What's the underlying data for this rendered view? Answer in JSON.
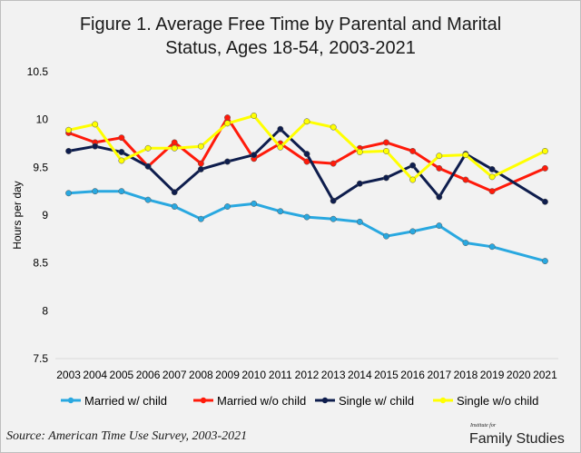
{
  "chart_data": {
    "type": "line",
    "title_line1": "Figure 1. Average Free Time by Parental and Marital",
    "title_line2": "Status, Ages 18-54, 2003-2021",
    "ylabel": "Hours per day",
    "xlabel": "",
    "ylim": [
      7.5,
      10.5
    ],
    "yticks": [
      7.5,
      8,
      8.5,
      9,
      9.5,
      10,
      10.5
    ],
    "ytick_labels": [
      "7.5",
      "8",
      "8.5",
      "9",
      "9.5",
      "10",
      "10.5"
    ],
    "grid": false,
    "legend_position": "bottom",
    "categories": [
      "2003",
      "2004",
      "2005",
      "2006",
      "2007",
      "2008",
      "2009",
      "2010",
      "2011",
      "2012",
      "2013",
      "2014",
      "2015",
      "2016",
      "2017",
      "2018",
      "2019",
      "2020",
      "2021"
    ],
    "series": [
      {
        "name": "Married w/ child",
        "color": "#29a8e0",
        "values": [
          9.23,
          9.25,
          9.25,
          9.16,
          9.09,
          8.96,
          9.09,
          9.12,
          9.04,
          8.98,
          8.96,
          8.93,
          8.78,
          8.83,
          8.89,
          8.71,
          8.67,
          null,
          8.52
        ]
      },
      {
        "name": "Married w/o child",
        "color": "#ff1a0a",
        "values": [
          9.86,
          9.76,
          9.81,
          9.51,
          9.76,
          9.54,
          10.02,
          9.59,
          9.75,
          9.56,
          9.54,
          9.7,
          9.76,
          9.67,
          9.49,
          9.37,
          9.25,
          null,
          9.49
        ]
      },
      {
        "name": "Single w/ child",
        "color": "#0e1d4d",
        "values": [
          9.67,
          9.72,
          9.66,
          9.51,
          9.24,
          9.48,
          9.56,
          9.63,
          9.9,
          9.64,
          9.15,
          9.33,
          9.39,
          9.52,
          9.19,
          9.64,
          9.48,
          null,
          9.14
        ]
      },
      {
        "name": "Single w/o child",
        "color": "#ffff00",
        "values": [
          9.89,
          9.95,
          9.57,
          9.7,
          9.7,
          9.72,
          9.96,
          10.04,
          9.71,
          9.98,
          9.92,
          9.66,
          9.67,
          9.37,
          9.62,
          9.63,
          9.4,
          null,
          9.67
        ]
      }
    ],
    "source": "Source: American Time Use Survey, 2003-2021"
  },
  "logo": {
    "line1": "Institute for",
    "line2": "Family Studies"
  }
}
